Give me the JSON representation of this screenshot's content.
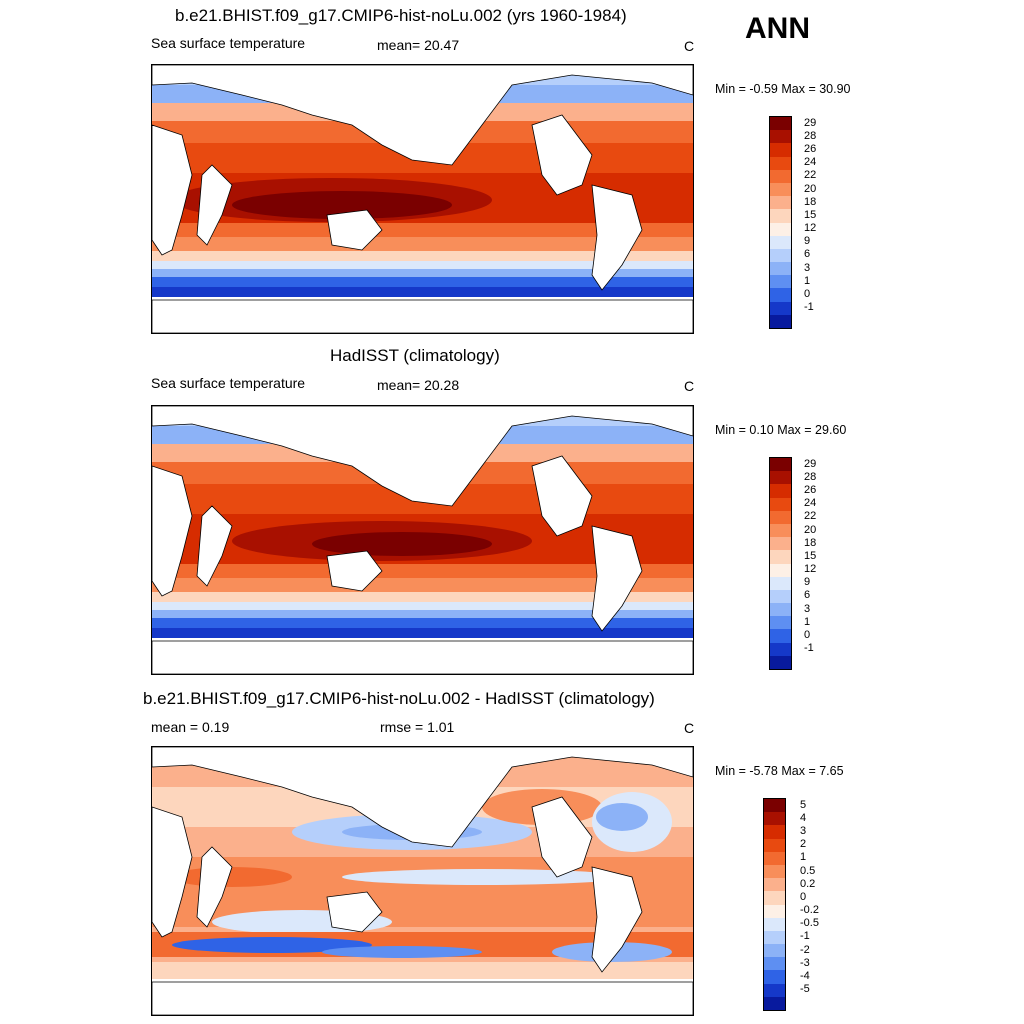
{
  "season_label": "ANN",
  "panels": [
    {
      "title": "b.e21.BHIST.f09_g17.CMIP6-hist-noLu.002 (yrs 1960-1984)",
      "left_label": "Sea surface temperature",
      "center_label": "mean=  20.47",
      "unit": "C",
      "minmax": "Min =  -0.59 Max =  30.90",
      "colorbar": {
        "levels": [
          "29",
          "28",
          "26",
          "24",
          "22",
          "20",
          "18",
          "15",
          "12",
          "9",
          "6",
          "3",
          "1",
          "0",
          "-1"
        ],
        "colors": [
          "#7a0000",
          "#a81000",
          "#d62c00",
          "#e84a10",
          "#f26a30",
          "#f88e5a",
          "#fbb08c",
          "#fdd6bd",
          "#fdf0e6",
          "#dbe8fb",
          "#b5cffb",
          "#8cb2f7",
          "#5e8ff2",
          "#2f63e6",
          "#1538c9",
          "#081a9e"
        ]
      }
    },
    {
      "title": "HadISST (climatology)",
      "left_label": "Sea surface temperature",
      "center_label": "mean=  20.28",
      "unit": "C",
      "minmax": "Min =   0.10 Max =  29.60",
      "colorbar": {
        "levels": [
          "29",
          "28",
          "26",
          "24",
          "22",
          "20",
          "18",
          "15",
          "12",
          "9",
          "6",
          "3",
          "1",
          "0",
          "-1"
        ],
        "colors": [
          "#7a0000",
          "#a81000",
          "#d62c00",
          "#e84a10",
          "#f26a30",
          "#f88e5a",
          "#fbb08c",
          "#fdd6bd",
          "#fdf0e6",
          "#dbe8fb",
          "#b5cffb",
          "#8cb2f7",
          "#5e8ff2",
          "#2f63e6",
          "#1538c9",
          "#081a9e"
        ]
      }
    },
    {
      "title": "b.e21.BHIST.f09_g17.CMIP6-hist-noLu.002 - HadISST (climatology)",
      "left_label": "mean =   0.19",
      "center_label": "rmse =   1.01",
      "unit": "C",
      "minmax": "Min =  -5.78 Max =   7.65",
      "colorbar": {
        "levels": [
          "5",
          "4",
          "3",
          "2",
          "1",
          "0.5",
          "0.2",
          "0",
          "-0.2",
          "-0.5",
          "-1",
          "-2",
          "-3",
          "-4",
          "-5"
        ],
        "colors": [
          "#7a0000",
          "#a81000",
          "#d62c00",
          "#e84a10",
          "#f26a30",
          "#f88e5a",
          "#fbb08c",
          "#fdd6bd",
          "#fdf0e6",
          "#dbe8fb",
          "#b5cffb",
          "#8cb2f7",
          "#5e8ff2",
          "#2f63e6",
          "#1538c9",
          "#081a9e"
        ]
      }
    }
  ]
}
